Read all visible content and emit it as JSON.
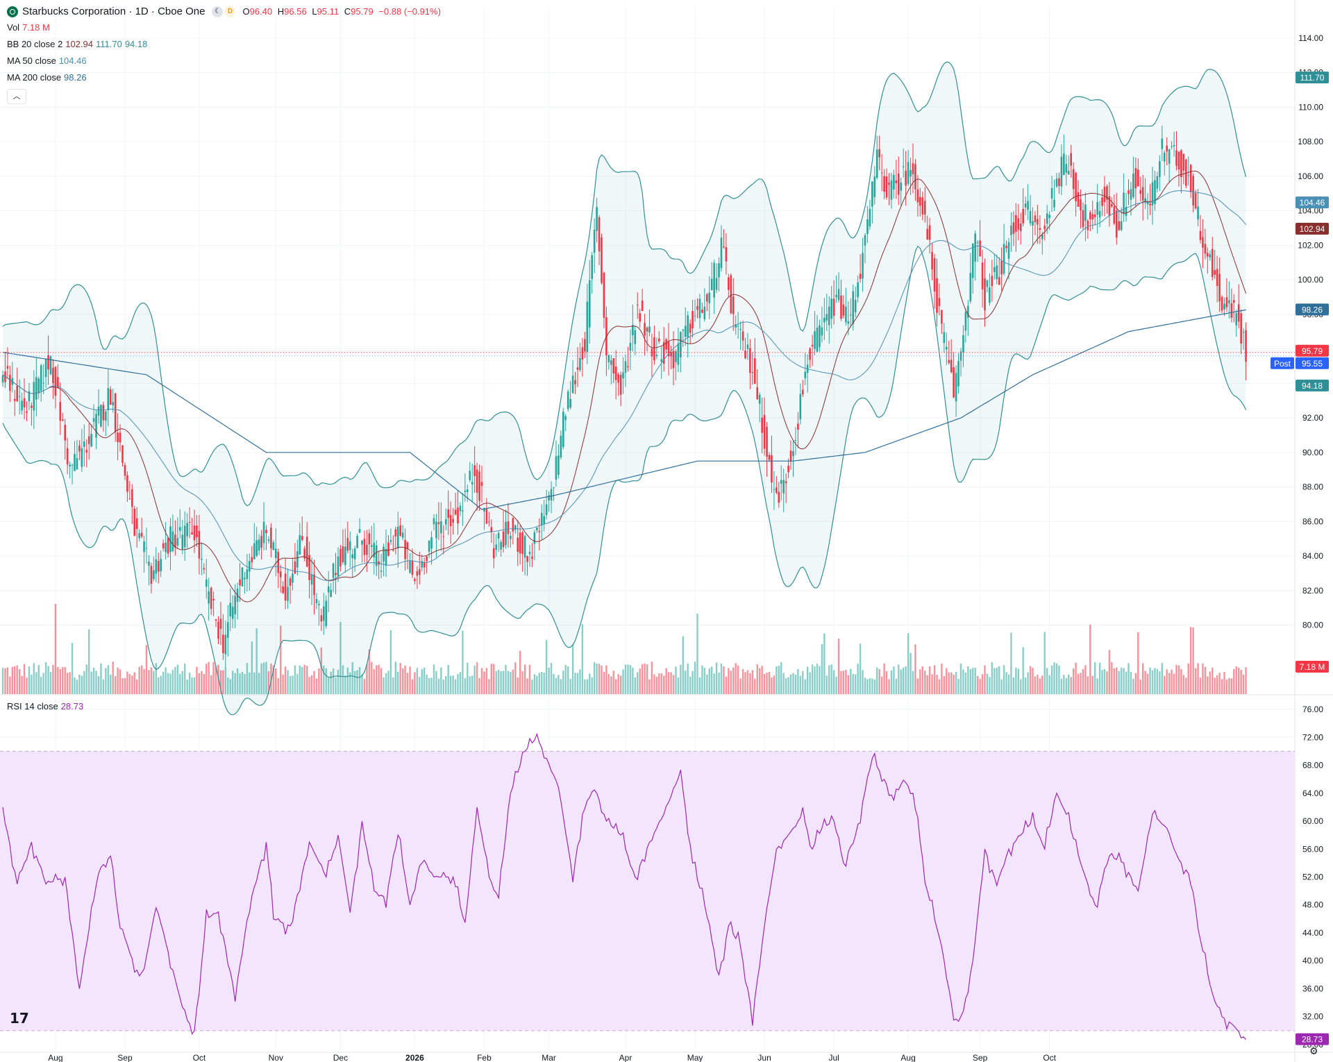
{
  "header": {
    "title": "Starbucks Corporation · 1D · Cboe One",
    "open_label": "O",
    "open": "96.40",
    "high_label": "H",
    "high": "96.56",
    "low_label": "L",
    "low": "95.11",
    "close_label": "C",
    "close": "95.79",
    "change": "−0.88 (−0.91%)",
    "interval_badge": "D"
  },
  "legend": {
    "vol_label": "Vol",
    "vol_value": "7.18 M",
    "bb_label": "BB 20 close 2",
    "bb_basis": "102.94",
    "bb_upper": "111.70",
    "bb_lower": "94.18",
    "ma50_label": "MA 50 close",
    "ma50_value": "104.46",
    "ma200_label": "MA 200 close",
    "ma200_value": "98.26",
    "rsi_label": "RSI 14 close",
    "rsi_value": "28.73"
  },
  "price_tags": {
    "bb_upper": "111.70",
    "ma50": "104.46",
    "bb_basis": "102.94",
    "ma200": "98.26",
    "last": "95.79",
    "post_label": "Post",
    "post": "95.55",
    "bb_lower": "94.18",
    "volume": "7.18 M",
    "rsi": "28.73"
  },
  "colors": {
    "up": "#26a69a",
    "down": "#f23645",
    "bb_band": "#2f8f96",
    "bb_basis": "#8b2e2e",
    "ma50": "#4a8fb5",
    "ma200": "#2f6f9a",
    "rsi_line": "#9c27b0",
    "rsi_fill": "#f3e5fd",
    "post": "#2962ff"
  },
  "chart_data": [
    {
      "type": "candlestick",
      "title": "Starbucks Corporation · 1D · Cboe One",
      "y_axis_ticks": [
        80,
        82,
        84,
        86,
        88,
        90,
        92,
        94,
        96,
        98,
        100,
        102,
        104,
        106,
        108,
        110,
        112,
        114
      ],
      "y_axis_tick_labels": [
        "80.00",
        "82.00",
        "84.00",
        "86.00",
        "88.00",
        "90.00",
        "92.00",
        "94.00",
        "96.00",
        "98.00",
        "100.00",
        "102.00",
        "104.00",
        "106.00",
        "108.00",
        "110.00",
        "112.00",
        "114.00"
      ],
      "x_axis_labels": [
        "Aug",
        "Sep",
        "Oct",
        "Nov",
        "Dec",
        "2026",
        "Feb",
        "Mar",
        "Apr",
        "May",
        "Jun",
        "Jul",
        "Aug",
        "Sep",
        "Oct"
      ],
      "ylim": [
        76,
        115
      ],
      "series": [
        {
          "name": "Price",
          "anchors": [
            [
              0,
              94.5
            ],
            [
              10,
              92.5
            ],
            [
              20,
              95.5
            ],
            [
              28,
              89
            ],
            [
              35,
              90.5
            ],
            [
              45,
              93.5
            ],
            [
              55,
              85.5
            ],
            [
              62,
              83
            ],
            [
              70,
              85
            ],
            [
              80,
              85.5
            ],
            [
              85,
              82
            ],
            [
              92,
              79
            ],
            [
              100,
              83
            ],
            [
              110,
              85.5
            ],
            [
              118,
              82
            ],
            [
              125,
              85
            ],
            [
              133,
              80
            ],
            [
              140,
              84
            ],
            [
              150,
              85
            ],
            [
              158,
              83.5
            ],
            [
              165,
              85.5
            ],
            [
              172,
              82.5
            ],
            [
              180,
              85.5
            ],
            [
              190,
              86.5
            ],
            [
              197,
              89
            ],
            [
              205,
              84.5
            ],
            [
              212,
              85.5
            ],
            [
              220,
              84
            ],
            [
              228,
              87
            ],
            [
              235,
              92.5
            ],
            [
              243,
              96.5
            ],
            [
              248,
              104
            ],
            [
              252,
              96
            ],
            [
              258,
              93.5
            ],
            [
              265,
              98.5
            ],
            [
              272,
              96
            ],
            [
              280,
              95.5
            ],
            [
              287,
              97.5
            ],
            [
              295,
              99
            ],
            [
              300,
              102
            ],
            [
              306,
              97
            ],
            [
              313,
              95
            ],
            [
              318,
              91
            ],
            [
              322,
              87.5
            ],
            [
              326,
              88
            ],
            [
              332,
              92
            ],
            [
              336,
              95.5
            ],
            [
              342,
              97
            ],
            [
              348,
              99
            ],
            [
              353,
              97.5
            ],
            [
              360,
              102
            ],
            [
              365,
              107
            ],
            [
              370,
              105
            ],
            [
              376,
              106
            ],
            [
              380,
              106.5
            ],
            [
              386,
              102.5
            ],
            [
              392,
              97
            ],
            [
              397,
              93.5
            ],
            [
              400,
              96
            ],
            [
              406,
              102.5
            ],
            [
              410,
              99
            ],
            [
              416,
              100.5
            ],
            [
              422,
              103
            ],
            [
              428,
              104
            ],
            [
              434,
              102.5
            ],
            [
              440,
              106
            ],
            [
              445,
              107
            ],
            [
              450,
              104
            ],
            [
              455,
              103
            ],
            [
              460,
              105
            ],
            [
              465,
              103
            ],
            [
              472,
              106
            ],
            [
              478,
              104
            ],
            [
              484,
              107.5
            ],
            [
              490,
              107
            ],
            [
              495,
              106
            ],
            [
              500,
              103
            ],
            [
              506,
              100
            ],
            [
              510,
              98.5
            ],
            [
              515,
              98
            ],
            [
              519,
              95.8
            ]
          ]
        },
        {
          "name": "MA 200 close",
          "anchors": [
            [
              0,
              95.8
            ],
            [
              60,
              94.5
            ],
            [
              110,
              90
            ],
            [
              170,
              90
            ],
            [
              200,
              86.7
            ],
            [
              230,
              87.5
            ],
            [
              290,
              89.5
            ],
            [
              330,
              89.5
            ],
            [
              360,
              90
            ],
            [
              400,
              92
            ],
            [
              430,
              94.5
            ],
            [
              470,
              97
            ],
            [
              519,
              98.26
            ]
          ]
        }
      ]
    },
    {
      "type": "bar",
      "name": "Vol",
      "last_value": "7.18 M"
    },
    {
      "type": "line",
      "name": "RSI 14 close",
      "y_axis_ticks": [
        28,
        32,
        36,
        40,
        44,
        48,
        52,
        56,
        60,
        64,
        68,
        72,
        76
      ],
      "y_axis_tick_labels": [
        "28.00",
        "32.00",
        "36.00",
        "40.00",
        "44.00",
        "48.00",
        "52.00",
        "56.00",
        "60.00",
        "64.00",
        "68.00",
        "72.00",
        "76.00"
      ],
      "ylim": [
        27,
        77
      ],
      "bands": [
        30,
        70
      ],
      "anchors": [
        [
          0,
          62
        ],
        [
          6,
          51
        ],
        [
          12,
          57
        ],
        [
          18,
          51
        ],
        [
          26,
          52
        ],
        [
          32,
          36
        ],
        [
          40,
          53
        ],
        [
          45,
          55
        ],
        [
          48,
          47
        ],
        [
          52,
          42
        ],
        [
          58,
          37
        ],
        [
          64,
          48
        ],
        [
          70,
          40
        ],
        [
          76,
          32
        ],
        [
          80,
          30
        ],
        [
          85,
          46
        ],
        [
          90,
          47
        ],
        [
          97,
          35
        ],
        [
          103,
          48
        ],
        [
          110,
          57
        ],
        [
          113,
          46
        ],
        [
          120,
          45
        ],
        [
          128,
          57
        ],
        [
          135,
          52
        ],
        [
          140,
          58
        ],
        [
          145,
          47
        ],
        [
          150,
          60
        ],
        [
          155,
          50
        ],
        [
          160,
          49
        ],
        [
          165,
          58
        ],
        [
          170,
          48
        ],
        [
          175,
          55
        ],
        [
          180,
          52
        ],
        [
          188,
          52
        ],
        [
          193,
          45
        ],
        [
          198,
          62
        ],
        [
          203,
          52
        ],
        [
          207,
          49
        ],
        [
          212,
          64
        ],
        [
          218,
          70
        ],
        [
          223,
          72
        ],
        [
          227,
          69
        ],
        [
          232,
          65
        ],
        [
          238,
          52
        ],
        [
          242,
          61
        ],
        [
          247,
          65
        ],
        [
          252,
          60
        ],
        [
          258,
          58
        ],
        [
          264,
          52
        ],
        [
          270,
          57
        ],
        [
          276,
          61
        ],
        [
          283,
          67
        ],
        [
          288,
          54
        ],
        [
          293,
          48
        ],
        [
          299,
          38
        ],
        [
          303,
          45
        ],
        [
          308,
          42
        ],
        [
          313,
          32
        ],
        [
          318,
          45
        ],
        [
          323,
          56
        ],
        [
          328,
          58
        ],
        [
          334,
          61
        ],
        [
          338,
          56
        ],
        [
          342,
          59
        ],
        [
          347,
          60
        ],
        [
          351,
          54
        ],
        [
          356,
          58
        ],
        [
          363,
          69
        ],
        [
          368,
          66
        ],
        [
          372,
          63
        ],
        [
          376,
          66
        ],
        [
          380,
          64
        ],
        [
          386,
          50
        ],
        [
          392,
          42
        ],
        [
          397,
          32
        ],
        [
          400,
          31
        ],
        [
          405,
          40
        ],
        [
          410,
          56
        ],
        [
          415,
          51
        ],
        [
          420,
          56
        ],
        [
          425,
          58
        ],
        [
          430,
          60
        ],
        [
          435,
          56
        ],
        [
          440,
          64
        ],
        [
          444,
          61
        ],
        [
          450,
          54
        ],
        [
          456,
          48
        ],
        [
          462,
          55
        ],
        [
          468,
          54
        ],
        [
          474,
          50
        ],
        [
          480,
          61
        ],
        [
          486,
          59
        ],
        [
          490,
          55
        ],
        [
          496,
          52
        ],
        [
          500,
          43
        ],
        [
          505,
          35
        ],
        [
          509,
          32
        ],
        [
          513,
          31
        ],
        [
          519,
          28.73
        ]
      ]
    }
  ]
}
